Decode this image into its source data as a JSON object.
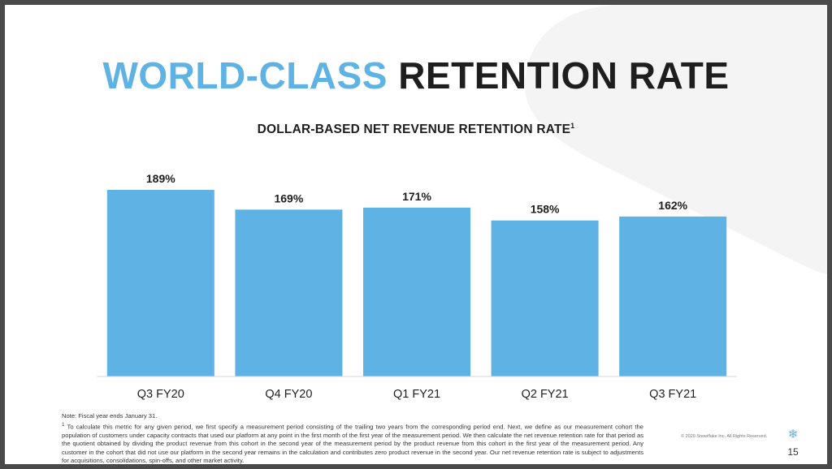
{
  "title": {
    "accent": "WORLD-CLASS",
    "main": "RETENTION RATE"
  },
  "chart_data": {
    "type": "bar",
    "title": "DOLLAR-BASED NET REVENUE RETENTION RATE",
    "title_footnote": "1",
    "categories": [
      "Q3 FY20",
      "Q4 FY20",
      "Q1 FY21",
      "Q2 FY21",
      "Q3 FY21"
    ],
    "values": [
      189,
      169,
      171,
      158,
      162
    ],
    "value_labels": [
      "189%",
      "169%",
      "171%",
      "158%",
      "162%"
    ],
    "unit": "%",
    "ylim": [
      0,
      189
    ],
    "grid": false,
    "legend": "none",
    "color": "#5eb3e4"
  },
  "notes": {
    "fiscal": "Note: Fiscal year ends January 31.",
    "footnote_marker": "1",
    "footnote": "To calculate this metric for any given period, we first specify a measurement period consisting of the trailing two years from the corresponding period end. Next, we define as our measurement cohort the population of customers under capacity contracts that used our platform at any point in the first month of the first year of the measurement period. We then calculate the net revenue retention rate for that period as the quotient obtained by dividing the product revenue from this cohort in the second year of the measurement period by the product revenue from this cohort in the first year of the measurement period. Any customer in the cohort that did not use our platform in the second year remains in the calculation and contributes zero product revenue in the second year. Our net revenue retention rate is subject to adjustments for acquisitions, consolidations, spin-offs, and other market activity."
  },
  "footer": {
    "copyright": "© 2020 Snowflake Inc. All Rights Reserved.",
    "page": "15",
    "logo_icon": "snowflake-icon"
  },
  "colors": {
    "accent": "#5eb3e4",
    "text": "#1e1e1e",
    "decor": "#f3f3f3"
  }
}
